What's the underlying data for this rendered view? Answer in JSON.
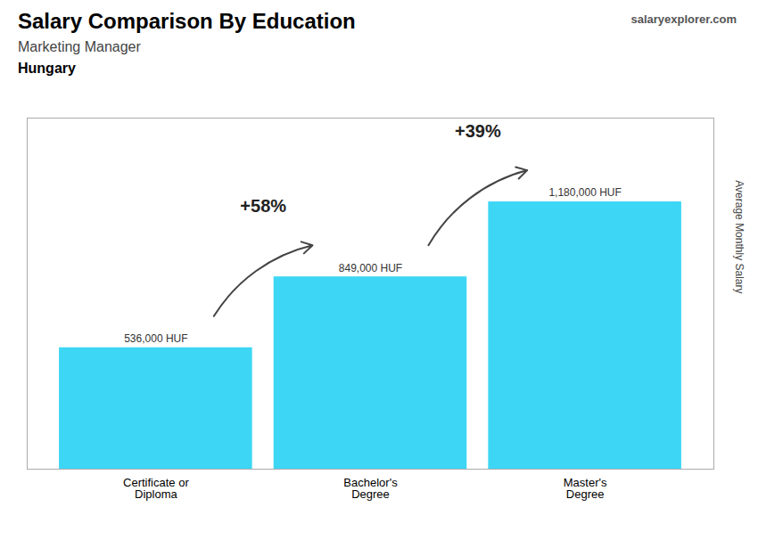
{
  "chart_data": {
    "type": "bar",
    "title": "Salary Comparison By Education",
    "subtitle": "Marketing Manager",
    "categories": [
      "Certificate or\nDiploma",
      "Bachelor's\nDegree",
      "Master's\nDegree"
    ],
    "values": [
      536000,
      849000,
      1180000
    ],
    "value_labels": [
      "536,000 HUF",
      "849,000 HUF",
      "1,180,000 HUF"
    ],
    "data_labels": true,
    "color": "#3dd6f5",
    "ylabel": "Average Monthly Salary",
    "ylim": [
      0,
      1550000
    ],
    "tick_labels": "x",
    "annotations": [
      {
        "text": "Hungary"
      },
      {
        "text": "salaryexplorer.com"
      },
      {
        "text": "+58%",
        "from": "Certificate or\nDiploma",
        "to": "Bachelor's\nDegree"
      },
      {
        "text": "+39%",
        "from": "Bachelor's\nDegree",
        "to": "Master's\nDegree"
      }
    ]
  }
}
